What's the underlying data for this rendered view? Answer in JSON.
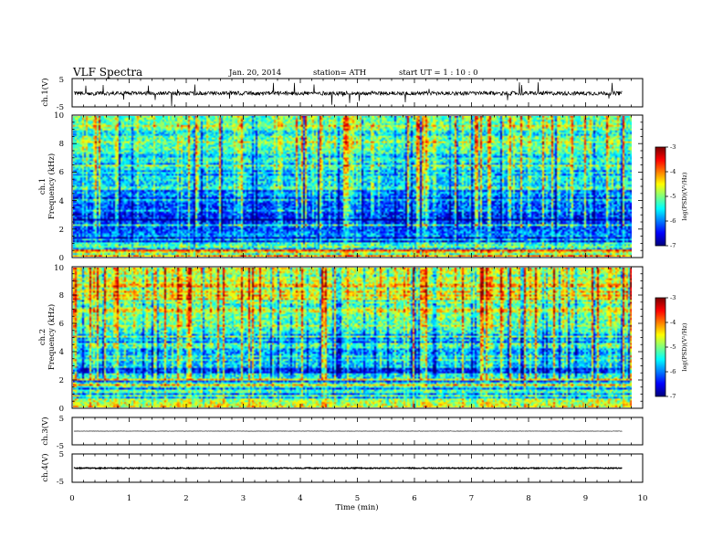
{
  "header": {
    "title": "VLF  Spectra",
    "date": "Jan. 20, 2014",
    "station": "station= ATH",
    "start": "start  UT  =   1  : 10 : 0"
  },
  "chart_data": {
    "type": "heatmap",
    "xlabel": "Time  (min)",
    "xlim": [
      0,
      10
    ],
    "x_ticks": [
      "0",
      "1",
      "2",
      "3",
      "4",
      "5",
      "6",
      "7",
      "8",
      "9",
      "10"
    ],
    "data_end_min": 9.8,
    "panels": [
      {
        "kind": "waveform",
        "ylabel": "ch.1(V)",
        "ylim": [
          -5,
          5
        ],
        "y_ticks": [
          "5",
          "-5"
        ],
        "offset": -0.2,
        "noise": 0.7,
        "spikes": true
      },
      {
        "kind": "spectrogram",
        "ylabel_1": "ch.1",
        "ylabel_2": "Frequency  (kHz)",
        "ylim": [
          0,
          10
        ],
        "y_ticks": [
          "0",
          "2",
          "4",
          "6",
          "8",
          "10"
        ],
        "colorbar": {
          "label": "log(PSD)(V²/Hz)",
          "range": [
            -7,
            -3
          ],
          "ticks": [
            "-3",
            "-4",
            "-5",
            "-6",
            "-7"
          ],
          "colormap": "jet"
        },
        "mean_log_psd_by_freq_khz": [
          [
            0,
            -4.2
          ],
          [
            1,
            -5.6
          ],
          [
            2,
            -6.3
          ],
          [
            3,
            -6.4
          ],
          [
            4,
            -6.1
          ],
          [
            5,
            -5.7
          ],
          [
            6,
            -5.5
          ],
          [
            8,
            -5.2
          ],
          [
            10,
            -5.1
          ]
        ]
      },
      {
        "kind": "spectrogram",
        "ylabel_1": "ch.2",
        "ylabel_2": "Frequency  (kHz)",
        "ylim": [
          0,
          10
        ],
        "y_ticks": [
          "0",
          "2",
          "4",
          "6",
          "8",
          "10"
        ],
        "colorbar": {
          "label": "log(PSD)(V²/Hz)",
          "range": [
            -7,
            -3
          ],
          "ticks": [
            "-3",
            "-4",
            "-5",
            "-6",
            "-7"
          ],
          "colormap": "jet"
        },
        "mean_log_psd_by_freq_khz": [
          [
            0,
            -4.6
          ],
          [
            1,
            -5.2
          ],
          [
            2,
            -5.4
          ],
          [
            3,
            -5.7
          ],
          [
            4,
            -5.9
          ],
          [
            5,
            -5.5
          ],
          [
            6,
            -5.2
          ],
          [
            8,
            -4.8
          ],
          [
            10,
            -4.7
          ]
        ]
      },
      {
        "kind": "waveform",
        "ylabel": "ch.3(V)",
        "ylim": [
          -5,
          5
        ],
        "y_ticks": [
          "5",
          "-5"
        ],
        "offset": 0.0,
        "noise": 0.05,
        "spikes": false
      },
      {
        "kind": "waveform",
        "ylabel": "ch.4(V)",
        "ylim": [
          -5,
          5
        ],
        "y_ticks": [
          "5",
          "-5"
        ],
        "offset": 0.0,
        "noise": 0.18,
        "spikes": false
      }
    ]
  },
  "colors": {
    "axis": "#000000",
    "background": "#ffffff",
    "trace": "#000000"
  }
}
